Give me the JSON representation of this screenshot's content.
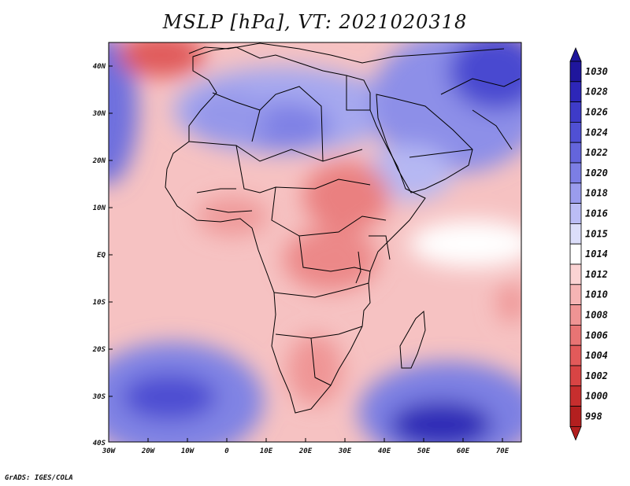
{
  "title": "MSLP [hPa], VT: 2021020318",
  "footer": "GrADS: IGES/COLA",
  "lat_labels": [
    "40N",
    "30N",
    "20N",
    "10N",
    "EQ",
    "10S",
    "20S",
    "30S",
    "40S"
  ],
  "lon_labels": [
    "30W",
    "20W",
    "10W",
    "0",
    "10E",
    "20E",
    "30E",
    "40E",
    "50E",
    "60E",
    "70E"
  ],
  "colorbar": {
    "levels": [
      "1030",
      "1028",
      "1026",
      "1024",
      "1022",
      "1020",
      "1018",
      "1016",
      "1015",
      "1014",
      "1012",
      "1010",
      "1008",
      "1006",
      "1004",
      "1002",
      "1000",
      "998"
    ],
    "colors": [
      "#1f169c",
      "#2d26b8",
      "#3e3bc8",
      "#5050d4",
      "#6465dc",
      "#7c7ee4",
      "#9a9ced",
      "#bbbdf5",
      "#dcdefa",
      "#ffffff",
      "#fbd3d3",
      "#f5b4b4",
      "#ef9494",
      "#e87474",
      "#e25a5a",
      "#d84444",
      "#c72e2e",
      "#b31f1f"
    ]
  },
  "colors": {
    "land_border": "#000000",
    "frame": "#000000"
  }
}
